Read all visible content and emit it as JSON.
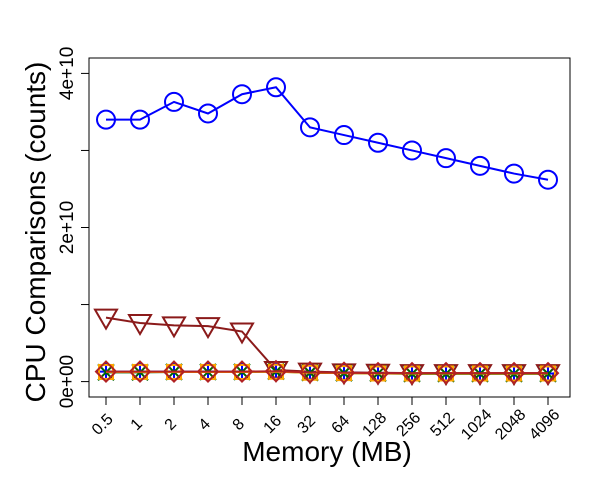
{
  "chart_data": {
    "type": "line",
    "xlabel": "Memory (MB)",
    "ylabel": "CPU Comparisons (counts)",
    "categories": [
      "0.5",
      "1",
      "2",
      "4",
      "8",
      "16",
      "32",
      "64",
      "128",
      "256",
      "512",
      "1024",
      "2048",
      "4096"
    ],
    "y_ticks": [
      0,
      20000000000,
      40000000000
    ],
    "y_tick_labels": [
      "0e+00",
      "2e+10",
      "4e+10"
    ],
    "y_minor_ticks": [
      10000000000,
      30000000000
    ],
    "ylim": [
      -2000000000,
      42000000000
    ],
    "grid": false,
    "legend": "none",
    "series": [
      {
        "color": "#0000ff",
        "marker": "circle",
        "values": [
          34000000000,
          34000000000,
          36300000000,
          34800000000,
          37300000000,
          38200000000,
          33000000000,
          32000000000,
          31000000000,
          30000000000,
          29000000000,
          28000000000,
          27000000000,
          26200000000
        ]
      },
      {
        "color": "#8b1a1a",
        "marker": "triangle-down",
        "values": [
          8300000000,
          7600000000,
          7300000000,
          7200000000,
          6500000000,
          1500000000,
          1300000000,
          1200000000,
          1150000000,
          1100000000,
          1100000000,
          1100000000,
          1100000000,
          1100000000
        ]
      },
      {
        "color": "#0000ff",
        "marker": "cross",
        "values": [
          1300000000,
          1300000000,
          1300000000,
          1300000000,
          1300000000,
          1300000000,
          1200000000,
          1150000000,
          1100000000,
          1050000000,
          1050000000,
          1050000000,
          1050000000,
          1050000000
        ]
      },
      {
        "color": "#006400",
        "marker": "x",
        "values": [
          1200000000,
          1200000000,
          1250000000,
          1250000000,
          1250000000,
          1300000000,
          1150000000,
          1100000000,
          1050000000,
          1000000000,
          1000000000,
          1000000000,
          1000000000,
          1000000000
        ]
      },
      {
        "color": "#ffa500",
        "marker": "square",
        "values": [
          1250000000,
          1250000000,
          1250000000,
          1250000000,
          1250000000,
          1280000000,
          1150000000,
          1100000000,
          1050000000,
          1050000000,
          1050000000,
          1050000000,
          1050000000,
          1050000000
        ]
      },
      {
        "color": "#b22222",
        "marker": "diamond",
        "values": [
          1300000000,
          1300000000,
          1300000000,
          1300000000,
          1300000000,
          1350000000,
          1200000000,
          1150000000,
          1100000000,
          1100000000,
          1100000000,
          1100000000,
          1100000000,
          1100000000
        ]
      }
    ]
  }
}
